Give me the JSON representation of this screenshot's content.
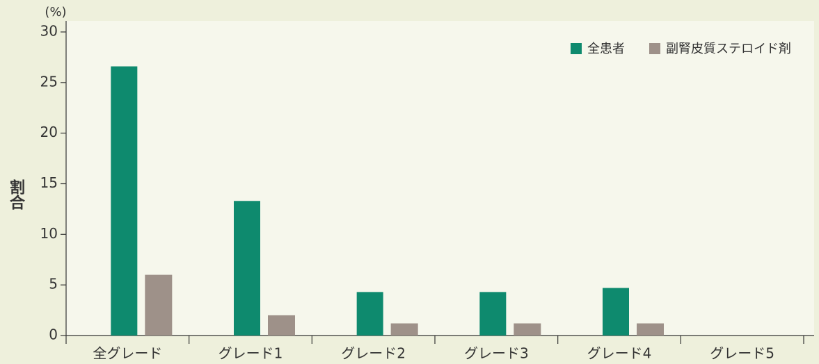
{
  "chart_data": {
    "type": "bar",
    "y_label": "割合",
    "y_unit": "(%)",
    "categories": [
      "全グレード",
      "グレード1",
      "グレード2",
      "グレード3",
      "グレード4",
      "グレード5"
    ],
    "series": [
      {
        "name": "全患者",
        "color": "#0e8a6e",
        "values": [
          26.6,
          13.3,
          4.3,
          4.3,
          4.7,
          0
        ]
      },
      {
        "name": "副腎皮質ステロイド剤",
        "color": "#9e9189",
        "values": [
          6.0,
          2.0,
          1.2,
          1.2,
          1.2,
          0
        ]
      }
    ],
    "ylim": [
      0,
      30
    ],
    "yticks": [
      0,
      5,
      10,
      15,
      20,
      25,
      30
    ],
    "legend": "upper right"
  }
}
